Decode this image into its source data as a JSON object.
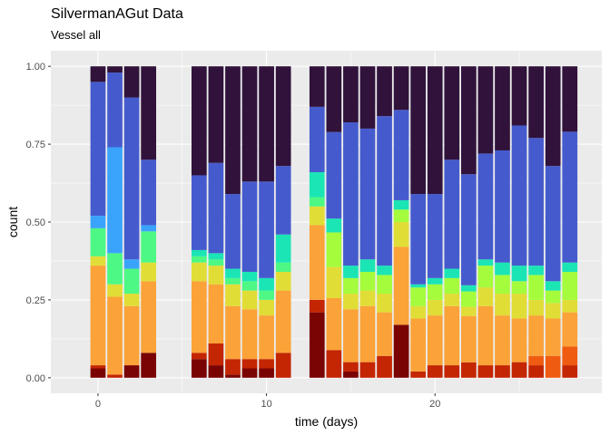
{
  "title": "SilvermanAGut Data",
  "subtitle": "Vessel all",
  "chart_data": {
    "type": "bar",
    "stacked": true,
    "position": "fill",
    "xlabel": "time (days)",
    "ylabel": "count",
    "xlim": [
      -2.8,
      29.9
    ],
    "ylim": [
      0,
      1
    ],
    "x_ticks": [
      0,
      10,
      20
    ],
    "y_ticks": [
      0,
      0.25,
      0.5,
      0.75,
      1
    ],
    "y_tick_labels": [
      "0.00",
      "0.25",
      "0.50",
      "0.75",
      "1.00"
    ],
    "grid": true,
    "legend": "none",
    "panel_background": "#ebebeb",
    "colors": [
      "#7a0403",
      "#c42503",
      "#f05b12",
      "#fba238",
      "#e1dd37",
      "#a4fc3c",
      "#4df884",
      "#1be5b5",
      "#3aa4fc",
      "#455bcd",
      "#30123b"
    ],
    "bar_width": 0.9,
    "bars": [
      {
        "x": 0,
        "vessel_group": 0,
        "segments": [
          0.03,
          0.01,
          0.0,
          0.32,
          0.03,
          0.0,
          0.09,
          0.0,
          0.04,
          0.43,
          0.05
        ]
      },
      {
        "x": 1,
        "vessel_group": 0,
        "segments": [
          0.0,
          0.01,
          0.0,
          0.25,
          0.04,
          0.0,
          0.1,
          0.0,
          0.34,
          0.24,
          0.02
        ]
      },
      {
        "x": 2,
        "vessel_group": 0,
        "segments": [
          0.04,
          0.0,
          0.0,
          0.19,
          0.04,
          0.0,
          0.08,
          0.0,
          0.03,
          0.52,
          0.1
        ]
      },
      {
        "x": 3,
        "vessel_group": 0,
        "segments": [
          0.08,
          0.0,
          0.0,
          0.23,
          0.06,
          0.0,
          0.1,
          0.0,
          0.02,
          0.21,
          0.3
        ]
      },
      {
        "x": 6,
        "vessel_group": 1,
        "segments": [
          0.06,
          0.02,
          0.0,
          0.23,
          0.06,
          0.0,
          0.02,
          0.02,
          0.0,
          0.24,
          0.35
        ]
      },
      {
        "x": 7,
        "vessel_group": 1,
        "segments": [
          0.04,
          0.07,
          0.0,
          0.19,
          0.06,
          0.0,
          0.02,
          0.02,
          0.0,
          0.29,
          0.31
        ]
      },
      {
        "x": 8,
        "vessel_group": 1,
        "segments": [
          0.01,
          0.05,
          0.0,
          0.17,
          0.07,
          0.0,
          0.02,
          0.03,
          0.0,
          0.24,
          0.41
        ]
      },
      {
        "x": 9,
        "vessel_group": 1,
        "segments": [
          0.03,
          0.03,
          0.0,
          0.16,
          0.06,
          0.0,
          0.03,
          0.03,
          0.0,
          0.29,
          0.37
        ]
      },
      {
        "x": 10,
        "vessel_group": 1,
        "segments": [
          0.03,
          0.03,
          0.0,
          0.14,
          0.05,
          0.0,
          0.03,
          0.04,
          0.0,
          0.31,
          0.37
        ]
      },
      {
        "x": 11,
        "vessel_group": 1,
        "segments": [
          0.0,
          0.08,
          0.0,
          0.2,
          0.06,
          0.0,
          0.03,
          0.09,
          0.0,
          0.22,
          0.32
        ]
      },
      {
        "x": 13,
        "vessel_group": 2,
        "segments": [
          0.21,
          0.04,
          0.0,
          0.24,
          0.06,
          0.0,
          0.03,
          0.08,
          0.0,
          0.21,
          0.13
        ]
      },
      {
        "x": 14,
        "vessel_group": 2,
        "segments": [
          0.0,
          0.08,
          0.0,
          0.15,
          0.09,
          0.1,
          0.0,
          0.04,
          0.0,
          0.25,
          0.19
        ]
      },
      {
        "x": 15,
        "vessel_group": 2,
        "segments": [
          0.02,
          0.03,
          0.0,
          0.17,
          0.05,
          0.05,
          0.0,
          0.04,
          0.0,
          0.46,
          0.18
        ]
      },
      {
        "x": 16,
        "vessel_group": 2,
        "segments": [
          0.0,
          0.05,
          0.0,
          0.18,
          0.05,
          0.06,
          0.0,
          0.04,
          0.0,
          0.42,
          0.2
        ]
      },
      {
        "x": 17,
        "vessel_group": 2,
        "segments": [
          0.0,
          0.07,
          0.0,
          0.14,
          0.06,
          0.06,
          0.0,
          0.03,
          0.0,
          0.48,
          0.16
        ]
      },
      {
        "x": 18,
        "vessel_group": 2,
        "segments": [
          0.17,
          0.0,
          0.0,
          0.25,
          0.08,
          0.04,
          0.0,
          0.03,
          0.0,
          0.29,
          0.14
        ]
      },
      {
        "x": 19,
        "vessel_group": 2,
        "segments": [
          0.0,
          0.02,
          0.0,
          0.17,
          0.04,
          0.06,
          0.0,
          0.01,
          0.0,
          0.29,
          0.41
        ]
      },
      {
        "x": 20,
        "vessel_group": 2,
        "segments": [
          0.0,
          0.04,
          0.0,
          0.16,
          0.05,
          0.05,
          0.0,
          0.02,
          0.0,
          0.27,
          0.41
        ]
      },
      {
        "x": 21,
        "vessel_group": 2,
        "segments": [
          0.0,
          0.04,
          0.0,
          0.19,
          0.04,
          0.05,
          0.0,
          0.03,
          0.0,
          0.35,
          0.3
        ]
      },
      {
        "x": 22,
        "vessel_group": 2,
        "segments": [
          0.0,
          0.05,
          0.0,
          0.15,
          0.03,
          0.05,
          0.0,
          0.02,
          0.0,
          0.36,
          0.35
        ]
      },
      {
        "x": 23,
        "vessel_group": 2,
        "segments": [
          0.0,
          0.04,
          0.0,
          0.19,
          0.06,
          0.07,
          0.0,
          0.02,
          0.0,
          0.34,
          0.28
        ]
      },
      {
        "x": 24,
        "vessel_group": 2,
        "segments": [
          0.0,
          0.04,
          0.0,
          0.16,
          0.07,
          0.06,
          0.0,
          0.04,
          0.0,
          0.36,
          0.27
        ]
      },
      {
        "x": 25,
        "vessel_group": 2,
        "segments": [
          0.0,
          0.05,
          0.0,
          0.14,
          0.08,
          0.04,
          0.0,
          0.05,
          0.0,
          0.45,
          0.19
        ]
      },
      {
        "x": 26,
        "vessel_group": 2,
        "segments": [
          0.0,
          0.04,
          0.03,
          0.13,
          0.05,
          0.08,
          0.0,
          0.03,
          0.0,
          0.41,
          0.23
        ]
      },
      {
        "x": 27,
        "vessel_group": 2,
        "segments": [
          0.0,
          0.0,
          0.07,
          0.12,
          0.05,
          0.04,
          0.0,
          0.03,
          0.0,
          0.37,
          0.32
        ]
      },
      {
        "x": 28,
        "vessel_group": 2,
        "segments": [
          0.0,
          0.04,
          0.06,
          0.11,
          0.04,
          0.09,
          0.0,
          0.03,
          0.0,
          0.42,
          0.21
        ]
      }
    ]
  }
}
